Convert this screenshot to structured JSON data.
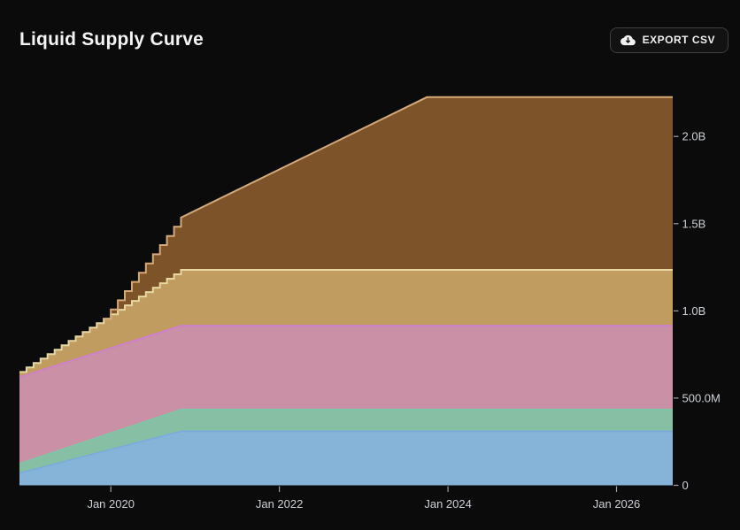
{
  "colors": {
    "background": "#0c0b0b",
    "title_text": "#f4f4f4",
    "axis_text": "#ccd1d8",
    "tick_mark": "#9aa0a8",
    "button_border": "#3e3e41",
    "button_background": "#131213"
  },
  "header": {
    "title": "Liquid Supply Curve",
    "export_button": {
      "label": "EXPORT CSV",
      "icon": "cloud-download-icon"
    }
  },
  "chart_data": {
    "type": "area",
    "stacked": true,
    "title": "Liquid Supply Curve",
    "value_scale": "millions_of_tokens",
    "grid": false,
    "legend": false,
    "total_peak_m": 2225,
    "x_axis": {
      "kind": "time",
      "t_unit": "months_from_left_edge",
      "start_approx": "Dec 2018",
      "end_approx": "Sep 2026",
      "ticks": [
        {
          "t": 13,
          "label": "Jan 2020"
        },
        {
          "t": 37,
          "label": "Jan 2022"
        },
        {
          "t": 61,
          "label": "Jan 2024"
        },
        {
          "t": 85,
          "label": "Jan 2026"
        }
      ]
    },
    "y_axis": {
      "position": "right",
      "ticks": [
        {
          "value_m": 0,
          "label": "0"
        },
        {
          "value_m": 500,
          "label": "500.0M"
        },
        {
          "value_m": 1000,
          "label": "1.0B"
        },
        {
          "value_m": 1500,
          "label": "1.5B"
        },
        {
          "value_m": 2000,
          "label": "2.0B"
        }
      ]
    },
    "series": [
      {
        "name": "series-1-blue",
        "fill": "#86b3d8",
        "edge": "#79aade",
        "edge_width": 1.6,
        "style": "smooth",
        "start_t": 0,
        "keyframes": [
          {
            "t": 0,
            "value_m": 70
          },
          {
            "t": 23,
            "value_m": 310
          },
          {
            "t": 93,
            "value_m": 310
          }
        ]
      },
      {
        "name": "series-2-teal",
        "fill": "#87bfa4",
        "edge": "#79c8a7",
        "edge_width": 1.6,
        "style": "smooth",
        "start_t": 0,
        "keyframes": [
          {
            "t": 0,
            "value_m": 55
          },
          {
            "t": 23,
            "value_m": 125
          },
          {
            "t": 93,
            "value_m": 125
          }
        ]
      },
      {
        "name": "series-3-pink",
        "fill": "#c990a6",
        "edge": "#ce7fcd",
        "edge_width": 2,
        "style": "smooth",
        "start_t": 0,
        "keyframes": [
          {
            "t": 0,
            "value_m": 495
          },
          {
            "t": 23,
            "value_m": 480
          },
          {
            "t": 93,
            "value_m": 480
          }
        ]
      },
      {
        "name": "series-4-tan",
        "fill": "#c09c61",
        "edge": "#e8d7a0",
        "edge_width": 2,
        "style": "stepped",
        "start_t": 0,
        "step_until": 23,
        "keyframes": [
          {
            "t": 0,
            "value_m": 30
          },
          {
            "t": 23,
            "value_m": 320
          },
          {
            "t": 93,
            "value_m": 320
          }
        ]
      },
      {
        "name": "series-5-brown",
        "fill": "#7d5429",
        "edge": "#d7a976",
        "edge_width": 2,
        "style": "stepped",
        "start_t": 12,
        "step_until": 23,
        "keyframes": [
          {
            "t": 0,
            "value_m": 0
          },
          {
            "t": 12,
            "value_m": 0
          },
          {
            "t": 23,
            "value_m": 300
          },
          {
            "t": 58,
            "value_m": 990
          },
          {
            "t": 93,
            "value_m": 990
          }
        ]
      }
    ]
  }
}
